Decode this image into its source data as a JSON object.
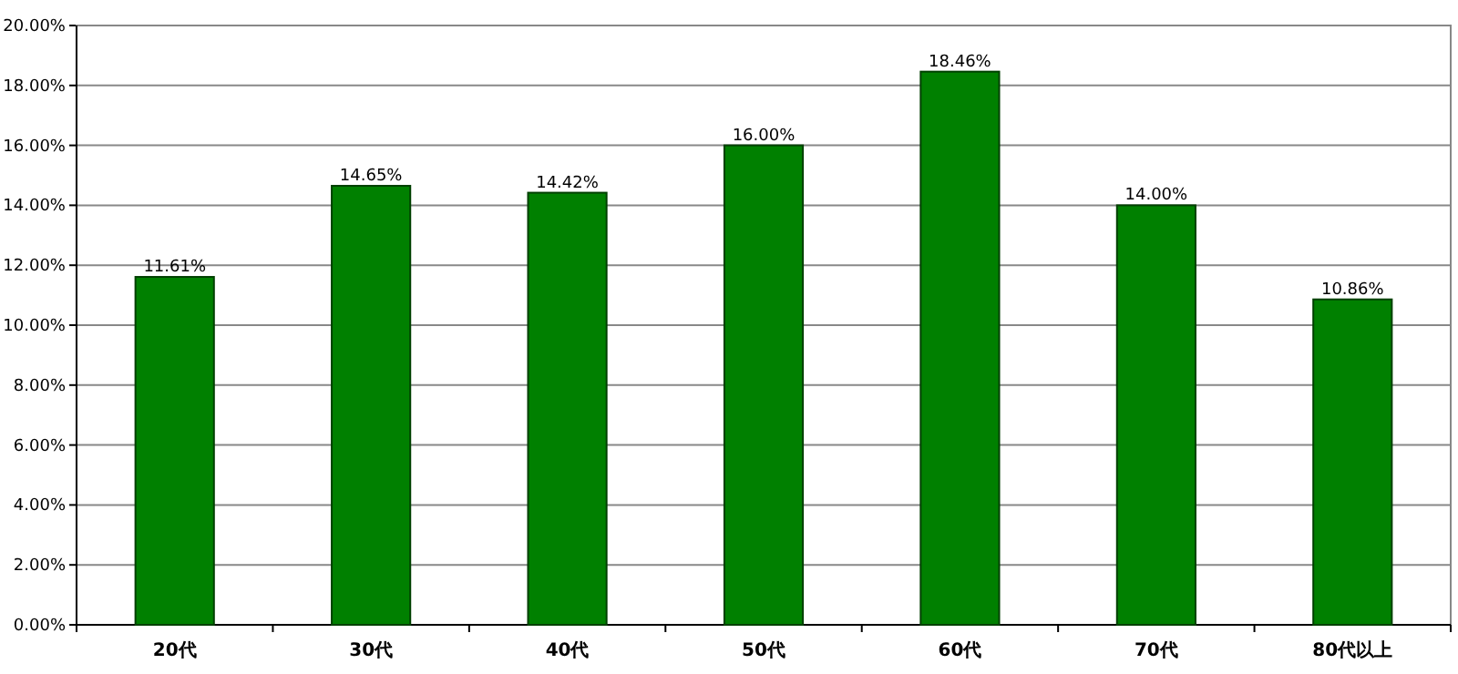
{
  "chart_data": {
    "type": "bar",
    "categories": [
      "20代",
      "30代",
      "40代",
      "50代",
      "60代",
      "70代",
      "80代以上"
    ],
    "values": [
      11.61,
      14.65,
      14.42,
      16.0,
      18.46,
      14.0,
      10.86
    ],
    "value_labels": [
      "11.61%",
      "14.65%",
      "14.42%",
      "16.00%",
      "18.46%",
      "14.00%",
      "10.86%"
    ],
    "color": "#008000",
    "ylim": [
      0,
      20
    ],
    "yticks": [
      {
        "value": 0,
        "label": "0.00%"
      },
      {
        "value": 2,
        "label": "2.00%"
      },
      {
        "value": 4,
        "label": "4.00%"
      },
      {
        "value": 6,
        "label": "6.00%"
      },
      {
        "value": 8,
        "label": "8.00%"
      },
      {
        "value": 10,
        "label": "10.00%"
      },
      {
        "value": 12,
        "label": "12.00%"
      },
      {
        "value": 14,
        "label": "14.00%"
      },
      {
        "value": 16,
        "label": "16.00%"
      },
      {
        "value": 18,
        "label": "18.00%"
      },
      {
        "value": 20,
        "label": "20.00%"
      }
    ],
    "grid": "y"
  }
}
